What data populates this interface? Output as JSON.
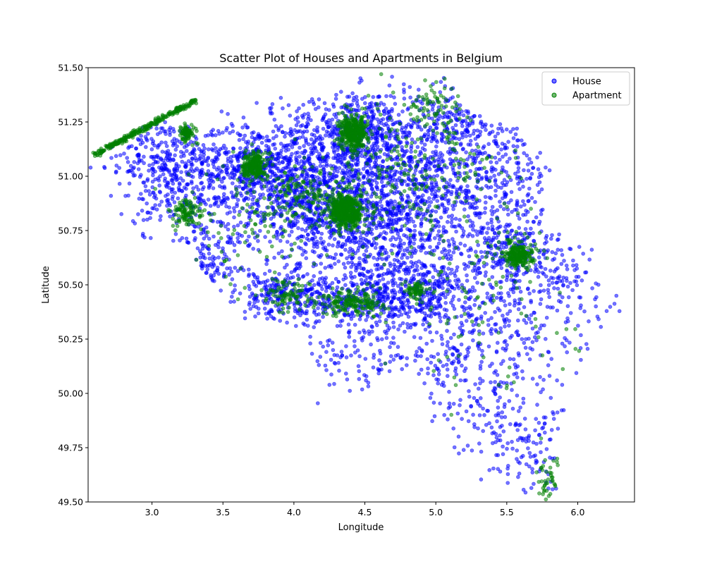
{
  "chart_data": {
    "type": "scatter",
    "title": "Scatter Plot of Houses and Apartments in Belgium",
    "xlabel": "Longitude",
    "ylabel": "Latitude",
    "xlim": [
      2.55,
      6.4
    ],
    "ylim": [
      49.5,
      51.5
    ],
    "x_ticks": [
      3.0,
      3.5,
      4.0,
      4.5,
      5.0,
      5.5,
      6.0
    ],
    "x_tick_labels": [
      "3.0",
      "3.5",
      "4.0",
      "4.5",
      "5.0",
      "5.5",
      "6.0"
    ],
    "y_ticks": [
      49.5,
      49.75,
      50.0,
      50.25,
      50.5,
      50.75,
      51.0,
      51.25,
      51.5
    ],
    "y_tick_labels": [
      "49.50",
      "49.75",
      "50.00",
      "50.25",
      "50.50",
      "50.75",
      "51.00",
      "51.25",
      "51.50"
    ],
    "legend_position": "top-right",
    "grid": false,
    "series": [
      {
        "name": "House",
        "color": "#0000ff",
        "opacity": 0.55,
        "clusters": [
          {
            "x": 4.35,
            "y": 50.85,
            "sx": 0.32,
            "sy": 0.16,
            "n": 900
          },
          {
            "x": 4.42,
            "y": 51.2,
            "sx": 0.25,
            "sy": 0.1,
            "n": 500
          },
          {
            "x": 3.72,
            "y": 51.05,
            "sx": 0.2,
            "sy": 0.1,
            "n": 380
          },
          {
            "x": 3.25,
            "y": 50.95,
            "sx": 0.2,
            "sy": 0.15,
            "n": 320
          },
          {
            "x": 4.05,
            "y": 50.95,
            "sx": 0.25,
            "sy": 0.12,
            "n": 350
          },
          {
            "x": 4.9,
            "y": 50.95,
            "sx": 0.3,
            "sy": 0.15,
            "n": 420
          },
          {
            "x": 5.35,
            "y": 51.0,
            "sx": 0.25,
            "sy": 0.15,
            "n": 300
          },
          {
            "x": 5.55,
            "y": 50.65,
            "sx": 0.18,
            "sy": 0.1,
            "n": 260
          },
          {
            "x": 4.45,
            "y": 50.42,
            "sx": 0.3,
            "sy": 0.06,
            "n": 330
          },
          {
            "x": 3.9,
            "y": 50.45,
            "sx": 0.15,
            "sy": 0.06,
            "n": 180
          },
          {
            "x": 4.85,
            "y": 50.47,
            "sx": 0.2,
            "sy": 0.07,
            "n": 200
          },
          {
            "x": 5.35,
            "y": 50.35,
            "sx": 0.3,
            "sy": 0.15,
            "n": 220
          },
          {
            "x": 5.25,
            "y": 50.05,
            "sx": 0.3,
            "sy": 0.18,
            "n": 200
          },
          {
            "x": 5.6,
            "y": 49.75,
            "sx": 0.15,
            "sy": 0.12,
            "n": 110
          },
          {
            "x": 4.55,
            "y": 50.2,
            "sx": 0.25,
            "sy": 0.15,
            "n": 130
          },
          {
            "x": 3.0,
            "y": 51.1,
            "sx": 0.2,
            "sy": 0.1,
            "n": 160
          },
          {
            "x": 4.75,
            "y": 50.65,
            "sx": 0.3,
            "sy": 0.12,
            "n": 300
          },
          {
            "x": 5.95,
            "y": 50.45,
            "sx": 0.2,
            "sy": 0.15,
            "n": 90
          },
          {
            "x": 3.4,
            "y": 50.6,
            "sx": 0.15,
            "sy": 0.08,
            "n": 100
          },
          {
            "x": 5.1,
            "y": 51.25,
            "sx": 0.25,
            "sy": 0.1,
            "n": 180
          }
        ]
      },
      {
        "name": "Apartment",
        "color": "#008000",
        "opacity": 0.55,
        "clusters": [
          {
            "x": 4.37,
            "y": 50.84,
            "sx": 0.06,
            "sy": 0.04,
            "n": 500
          },
          {
            "x": 4.42,
            "y": 51.2,
            "sx": 0.05,
            "sy": 0.04,
            "n": 350
          },
          {
            "x": 3.72,
            "y": 51.05,
            "sx": 0.04,
            "sy": 0.03,
            "n": 220
          },
          {
            "x": 5.58,
            "y": 50.64,
            "sx": 0.05,
            "sy": 0.03,
            "n": 220
          },
          {
            "x": 4.42,
            "y": 50.42,
            "sx": 0.12,
            "sy": 0.03,
            "n": 180
          },
          {
            "x": 3.25,
            "y": 51.2,
            "sx": 0.03,
            "sy": 0.02,
            "n": 80
          },
          {
            "x": 3.25,
            "y": 50.83,
            "sx": 0.06,
            "sy": 0.03,
            "n": 100
          },
          {
            "x": 4.05,
            "y": 50.93,
            "sx": 0.1,
            "sy": 0.06,
            "n": 100
          },
          {
            "x": 4.87,
            "y": 50.47,
            "sx": 0.04,
            "sy": 0.02,
            "n": 60
          },
          {
            "x": 3.95,
            "y": 50.45,
            "sx": 0.08,
            "sy": 0.04,
            "n": 80
          },
          {
            "x": 4.8,
            "y": 51.0,
            "sx": 0.3,
            "sy": 0.15,
            "n": 200
          },
          {
            "x": 5.3,
            "y": 50.5,
            "sx": 0.35,
            "sy": 0.25,
            "n": 120
          },
          {
            "x": 3.8,
            "y": 50.8,
            "sx": 0.3,
            "sy": 0.15,
            "n": 120
          },
          {
            "x": 5.8,
            "y": 49.6,
            "sx": 0.05,
            "sy": 0.05,
            "n": 40
          },
          {
            "x": 5.0,
            "y": 51.3,
            "sx": 0.15,
            "sy": 0.07,
            "n": 80
          }
        ],
        "coast": {
          "from": [
            2.6,
            51.1
          ],
          "to": [
            3.32,
            51.355
          ],
          "n": 260
        }
      }
    ]
  }
}
